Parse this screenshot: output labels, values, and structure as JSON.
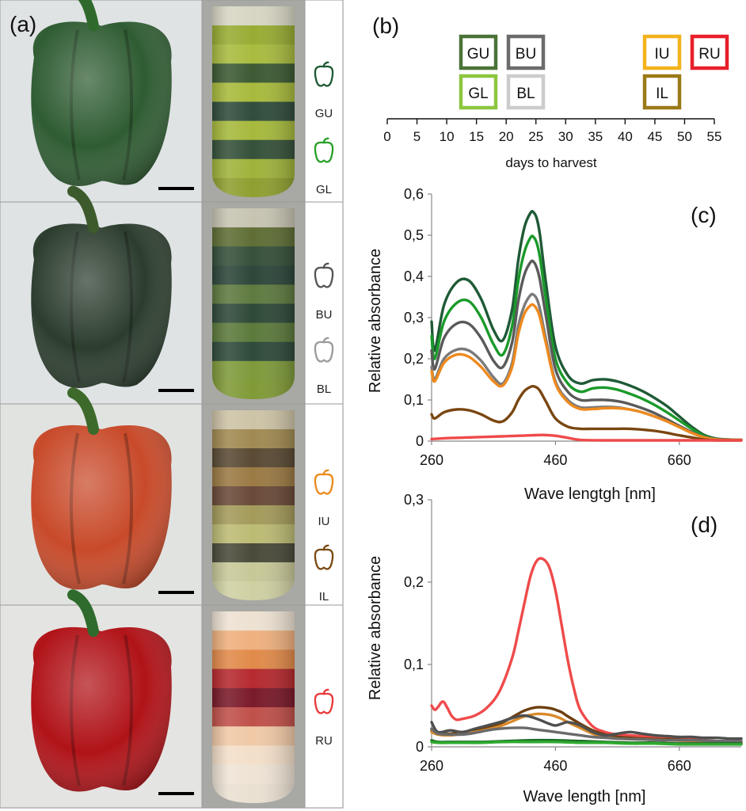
{
  "panel_labels": {
    "a": "(a)",
    "b": "(b)",
    "c": "(c)",
    "d": "(d)"
  },
  "stages": [
    {
      "label": "GU",
      "color": "#1f5a36",
      "group": 0
    },
    {
      "label": "GL",
      "color": "#2aa02a",
      "group": 0
    },
    {
      "label": "BU",
      "color": "#555555",
      "group": 1
    },
    {
      "label": "BL",
      "color": "#9b9b9b",
      "group": 1
    },
    {
      "label": "IU",
      "color": "#e98a1c",
      "group": 2
    },
    {
      "label": "IL",
      "color": "#7a4a12",
      "group": 2
    },
    {
      "label": "RU",
      "color": "#e8393a",
      "group": 3
    }
  ],
  "fruit_colors": [
    "#2f5c32",
    "#2c3d2e",
    "#c84a2a",
    "#b01318"
  ],
  "tube_layers": [
    [
      "#d7d6c4",
      "#98ac33",
      "#a9bb3f",
      "#3c5a33",
      "#a8ba3c",
      "#304c3b",
      "#a6b93c",
      "#35513a",
      "#9fb33b",
      "#8f9f30"
    ],
    [
      "#c7c4b2",
      "#5f6e35",
      "#36503b",
      "#2d463a",
      "#5f7a40",
      "#2e4938",
      "#5c7a3c",
      "#2e4a3a",
      "#7e9a3b",
      "#809a37"
    ],
    [
      "#cdc3a6",
      "#a08a52",
      "#5a4a34",
      "#9b7a44",
      "#6a4a38",
      "#a39a5a",
      "#bcbb74",
      "#4a4a3a",
      "#c7c898",
      "#cfd0a2"
    ],
    [
      "#ede1d2",
      "#eeb07e",
      "#e18a4a",
      "#b52a2f",
      "#7a1a2a",
      "#c0504a",
      "#f0c9a6",
      "#f3dfc9",
      "#efe3d5",
      "#eae0d2"
    ]
  ],
  "panel_b": {
    "xlabel": "days to harvest",
    "xticks": [
      0,
      5,
      10,
      15,
      20,
      25,
      30,
      35,
      40,
      45,
      50,
      55
    ],
    "boxes": [
      {
        "label": "GU",
        "color": "#4a7337"
      },
      {
        "label": "BU",
        "color": "#6b6b6b"
      },
      {
        "label": "GL",
        "color": "#8cc63f"
      },
      {
        "label": "BL",
        "color": "#cccccc"
      },
      {
        "label": "IU",
        "color": "#f2b21b"
      },
      {
        "label": "RU",
        "color": "#e8202a"
      },
      {
        "label": "IL",
        "color": "#9a7a18"
      }
    ]
  },
  "chart_data": [
    {
      "type": "line",
      "xlabel": "Wave lengtgh [nm]",
      "ylabel": "Relative absorbance",
      "xlim": [
        260,
        760
      ],
      "ylim": [
        0,
        0.6
      ],
      "xticks": [
        260,
        460,
        660
      ],
      "yticks": [
        "0",
        "0,1",
        "0,2",
        "0,3",
        "0,4",
        "0,5",
        "0,6"
      ],
      "series": [
        {
          "name": "GU",
          "color": "#1f5a36",
          "x": [
            260,
            265,
            280,
            300,
            320,
            340,
            360,
            375,
            390,
            400,
            410,
            420,
            425,
            430,
            435,
            445,
            460,
            480,
            500,
            520,
            540,
            560,
            580,
            600,
            620,
            640,
            660,
            680,
            700,
            720,
            740,
            760
          ],
          "y": [
            0.29,
            0.22,
            0.33,
            0.385,
            0.39,
            0.345,
            0.27,
            0.245,
            0.32,
            0.44,
            0.52,
            0.555,
            0.555,
            0.54,
            0.5,
            0.38,
            0.23,
            0.16,
            0.14,
            0.148,
            0.15,
            0.145,
            0.135,
            0.122,
            0.105,
            0.085,
            0.06,
            0.035,
            0.015,
            0.006,
            0.004,
            0.003
          ]
        },
        {
          "name": "GL",
          "color": "#1a9a2a",
          "x": [
            260,
            265,
            280,
            300,
            320,
            340,
            360,
            375,
            390,
            400,
            410,
            420,
            425,
            430,
            435,
            445,
            460,
            480,
            500,
            520,
            540,
            560,
            580,
            600,
            620,
            640,
            660,
            680,
            700,
            720,
            740,
            760
          ],
          "y": [
            0.255,
            0.2,
            0.29,
            0.335,
            0.34,
            0.3,
            0.235,
            0.21,
            0.28,
            0.39,
            0.46,
            0.495,
            0.495,
            0.48,
            0.445,
            0.34,
            0.2,
            0.14,
            0.12,
            0.128,
            0.13,
            0.125,
            0.115,
            0.103,
            0.088,
            0.07,
            0.05,
            0.03,
            0.013,
            0.005,
            0.003,
            0.003
          ]
        },
        {
          "name": "BU",
          "color": "#5a5a5a",
          "x": [
            260,
            265,
            280,
            300,
            320,
            340,
            360,
            375,
            390,
            400,
            410,
            420,
            425,
            430,
            435,
            445,
            460,
            480,
            500,
            520,
            540,
            560,
            580,
            600,
            620,
            640,
            660,
            680,
            700,
            720,
            740,
            760
          ],
          "y": [
            0.22,
            0.175,
            0.25,
            0.285,
            0.285,
            0.25,
            0.195,
            0.18,
            0.24,
            0.34,
            0.405,
            0.435,
            0.435,
            0.42,
            0.39,
            0.3,
            0.175,
            0.12,
            0.1,
            0.1,
            0.1,
            0.097,
            0.09,
            0.08,
            0.068,
            0.053,
            0.037,
            0.022,
            0.01,
            0.005,
            0.003,
            0.003
          ]
        },
        {
          "name": "BL",
          "color": "#7a7a7a",
          "x": [
            260,
            265,
            280,
            300,
            320,
            340,
            360,
            375,
            390,
            400,
            410,
            420,
            425,
            430,
            435,
            445,
            460,
            480,
            500,
            520,
            540,
            560,
            580,
            600,
            620,
            640,
            660,
            680,
            700,
            720,
            740,
            760
          ],
          "y": [
            0.18,
            0.15,
            0.2,
            0.222,
            0.22,
            0.195,
            0.155,
            0.14,
            0.19,
            0.28,
            0.33,
            0.355,
            0.355,
            0.345,
            0.32,
            0.245,
            0.145,
            0.1,
            0.082,
            0.082,
            0.083,
            0.082,
            0.077,
            0.07,
            0.06,
            0.048,
            0.034,
            0.02,
            0.009,
            0.004,
            0.003,
            0.003
          ]
        },
        {
          "name": "IU",
          "color": "#ee8a1e",
          "x": [
            260,
            265,
            280,
            300,
            320,
            340,
            360,
            375,
            390,
            400,
            410,
            420,
            425,
            430,
            435,
            445,
            460,
            480,
            500,
            520,
            540,
            560,
            580,
            600,
            620,
            640,
            660,
            680,
            700,
            720,
            740,
            760
          ],
          "y": [
            0.17,
            0.145,
            0.19,
            0.21,
            0.205,
            0.18,
            0.145,
            0.135,
            0.18,
            0.26,
            0.31,
            0.33,
            0.33,
            0.32,
            0.3,
            0.235,
            0.14,
            0.095,
            0.078,
            0.078,
            0.08,
            0.08,
            0.077,
            0.07,
            0.06,
            0.048,
            0.034,
            0.02,
            0.009,
            0.004,
            0.003,
            0.003
          ]
        },
        {
          "name": "IL",
          "color": "#7a4610",
          "x": [
            260,
            265,
            280,
            300,
            320,
            340,
            360,
            375,
            390,
            400,
            410,
            420,
            425,
            430,
            435,
            445,
            460,
            480,
            500,
            520,
            540,
            560,
            580,
            600,
            620,
            640,
            660,
            680,
            700,
            720,
            740,
            760
          ],
          "y": [
            0.065,
            0.055,
            0.07,
            0.077,
            0.075,
            0.065,
            0.05,
            0.048,
            0.07,
            0.1,
            0.122,
            0.132,
            0.133,
            0.13,
            0.122,
            0.095,
            0.055,
            0.035,
            0.03,
            0.03,
            0.03,
            0.03,
            0.03,
            0.028,
            0.025,
            0.02,
            0.014,
            0.009,
            0.004,
            0.002,
            0.002,
            0.002
          ]
        },
        {
          "name": "RU",
          "color": "#ef4a4a",
          "x": [
            260,
            280,
            300,
            320,
            340,
            360,
            380,
            400,
            420,
            440,
            460,
            480,
            500,
            540,
            580,
            620,
            660,
            700,
            760
          ],
          "y": [
            0.005,
            0.007,
            0.008,
            0.009,
            0.01,
            0.011,
            0.012,
            0.013,
            0.014,
            0.015,
            0.013,
            0.008,
            0.003,
            0.002,
            0.002,
            0.002,
            0.002,
            0.002,
            0.002
          ]
        }
      ]
    },
    {
      "type": "line",
      "xlabel": "Wave length [nm]",
      "ylabel": "Relative absorbance",
      "xlim": [
        260,
        760
      ],
      "ylim": [
        0,
        0.3
      ],
      "xticks": [
        260,
        460,
        660
      ],
      "yticks": [
        "0",
        "0,1",
        "0,2",
        "0,3"
      ],
      "series": [
        {
          "name": "RU",
          "color": "#ef4a4a",
          "x": [
            260,
            265,
            270,
            278,
            285,
            292,
            300,
            310,
            330,
            350,
            370,
            390,
            400,
            410,
            420,
            430,
            440,
            450,
            460,
            470,
            480,
            490,
            500,
            520,
            540,
            560,
            580,
            600,
            620,
            640,
            660,
            680,
            700,
            720,
            740,
            760
          ],
          "y": [
            0.05,
            0.045,
            0.048,
            0.055,
            0.048,
            0.038,
            0.033,
            0.034,
            0.038,
            0.048,
            0.068,
            0.108,
            0.14,
            0.175,
            0.208,
            0.226,
            0.228,
            0.218,
            0.19,
            0.148,
            0.105,
            0.07,
            0.045,
            0.025,
            0.018,
            0.015,
            0.014,
            0.013,
            0.012,
            0.011,
            0.01,
            0.009,
            0.008,
            0.007,
            0.006,
            0.005
          ]
        },
        {
          "name": "IL",
          "color": "#6e3f0f",
          "x": [
            260,
            270,
            290,
            310,
            330,
            350,
            370,
            390,
            410,
            430,
            450,
            460,
            470,
            480,
            500,
            520,
            540,
            560,
            600,
            640,
            680,
            720,
            760
          ],
          "y": [
            0.02,
            0.017,
            0.016,
            0.018,
            0.02,
            0.024,
            0.028,
            0.036,
            0.044,
            0.048,
            0.047,
            0.045,
            0.042,
            0.037,
            0.028,
            0.02,
            0.015,
            0.012,
            0.01,
            0.009,
            0.008,
            0.007,
            0.006
          ]
        },
        {
          "name": "IU",
          "color": "#d98a2a",
          "x": [
            260,
            270,
            290,
            310,
            330,
            350,
            370,
            390,
            410,
            430,
            450,
            460,
            470,
            480,
            500,
            520,
            540,
            560,
            600,
            640,
            680,
            720,
            760
          ],
          "y": [
            0.018,
            0.015,
            0.014,
            0.016,
            0.018,
            0.021,
            0.025,
            0.031,
            0.037,
            0.04,
            0.039,
            0.037,
            0.034,
            0.03,
            0.023,
            0.016,
            0.012,
            0.01,
            0.009,
            0.008,
            0.007,
            0.006,
            0.005
          ]
        },
        {
          "name": "BU",
          "color": "#4f4f4f",
          "x": [
            260,
            270,
            290,
            310,
            330,
            350,
            370,
            390,
            410,
            430,
            450,
            460,
            470,
            480,
            500,
            520,
            540,
            560,
            580,
            600,
            620,
            640,
            660,
            680,
            700,
            720,
            740,
            760
          ],
          "y": [
            0.03,
            0.018,
            0.02,
            0.018,
            0.022,
            0.026,
            0.03,
            0.035,
            0.038,
            0.034,
            0.028,
            0.026,
            0.028,
            0.03,
            0.026,
            0.018,
            0.014,
            0.016,
            0.018,
            0.016,
            0.014,
            0.013,
            0.012,
            0.012,
            0.011,
            0.011,
            0.01,
            0.01
          ]
        },
        {
          "name": "BL",
          "color": "#6a6a6a",
          "x": [
            260,
            270,
            290,
            310,
            330,
            350,
            370,
            390,
            410,
            430,
            450,
            460,
            470,
            480,
            500,
            520,
            540,
            560,
            600,
            640,
            680,
            720,
            760
          ],
          "y": [
            0.022,
            0.016,
            0.015,
            0.015,
            0.017,
            0.02,
            0.022,
            0.023,
            0.023,
            0.021,
            0.019,
            0.018,
            0.017,
            0.016,
            0.014,
            0.012,
            0.011,
            0.01,
            0.009,
            0.008,
            0.008,
            0.007,
            0.007
          ]
        },
        {
          "name": "GU",
          "color": "#1f6a2a",
          "x": [
            260,
            270,
            300,
            340,
            380,
            420,
            460,
            500,
            540,
            580,
            620,
            660,
            700,
            760
          ],
          "y": [
            0.008,
            0.006,
            0.006,
            0.006,
            0.007,
            0.008,
            0.008,
            0.007,
            0.006,
            0.005,
            0.005,
            0.004,
            0.004,
            0.004
          ]
        },
        {
          "name": "GL",
          "color": "#2eaa2e",
          "x": [
            260,
            270,
            300,
            340,
            380,
            420,
            460,
            500,
            540,
            580,
            620,
            660,
            700,
            760
          ],
          "y": [
            0.006,
            0.005,
            0.005,
            0.005,
            0.006,
            0.006,
            0.006,
            0.005,
            0.005,
            0.004,
            0.004,
            0.003,
            0.003,
            0.003
          ]
        }
      ]
    }
  ]
}
